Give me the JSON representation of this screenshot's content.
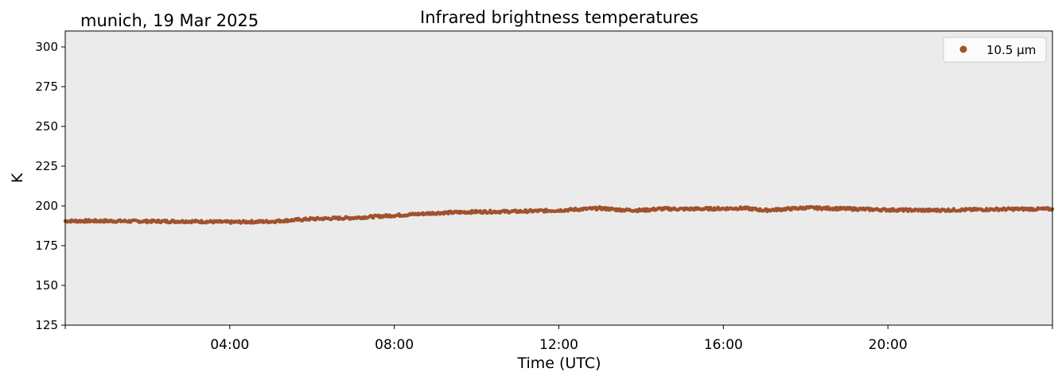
{
  "chart_data": {
    "type": "scatter",
    "title": "Infrared brightness temperatures",
    "subtitle": "munich, 19 Mar 2025",
    "xlabel": "Time (UTC)",
    "ylabel": "K",
    "xlim": [
      "00:00",
      "24:00"
    ],
    "ylim": [
      125,
      310
    ],
    "x_tick_labels": [
      "04:00",
      "08:00",
      "12:00",
      "16:00",
      "20:00"
    ],
    "y_tick_labels": [
      "125",
      "150",
      "175",
      "200",
      "225",
      "250",
      "275",
      "300"
    ],
    "grid": false,
    "legend_position": "top-right",
    "series": [
      {
        "name": "10.5 µm",
        "color": "#a0522d",
        "x": [
          "00:00",
          "01:00",
          "02:00",
          "03:00",
          "04:00",
          "05:00",
          "06:00",
          "07:00",
          "08:00",
          "09:00",
          "10:00",
          "11:00",
          "12:00",
          "13:00",
          "13:30",
          "14:00",
          "14:30",
          "15:00",
          "16:00",
          "16:30",
          "17:00",
          "17:30",
          "18:00",
          "19:00",
          "20:00",
          "21:00",
          "22:00",
          "23:00",
          "24:00"
        ],
        "y": [
          190.5,
          190.5,
          190.3,
          190.3,
          189.8,
          190.2,
          191.8,
          192.5,
          194.0,
          195.5,
          196.3,
          196.5,
          197.2,
          198.5,
          197.5,
          197.2,
          198.2,
          198.0,
          198.3,
          198.6,
          197.2,
          198.0,
          198.8,
          198.2,
          197.5,
          197.2,
          197.6,
          198.0,
          198.0
        ]
      }
    ],
    "background_color": "#ebebeb"
  }
}
